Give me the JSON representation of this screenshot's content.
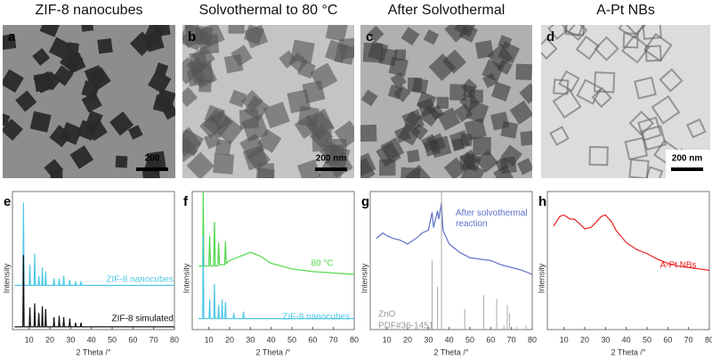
{
  "panels": [
    {
      "letter": "a",
      "title": "ZIF-8 nanocubes",
      "scale_bar": "200"
    },
    {
      "letter": "b",
      "title": "Solvothermal to 80 °C",
      "scale_bar": "200 nm"
    },
    {
      "letter": "c",
      "title": "After Solvothermal",
      "scale_bar": null
    },
    {
      "letter": "d",
      "title": "A-Pt NBs",
      "scale_bar": "200 nm"
    }
  ],
  "chart_data": [
    {
      "type": "line",
      "letter": "e",
      "xlabel": "2 Theta /°",
      "ylabel": "Intensity",
      "xlim": [
        2,
        80
      ],
      "xticks": [
        10,
        20,
        30,
        40,
        50,
        60,
        70,
        80
      ],
      "ylim": [
        0,
        100
      ],
      "series": [
        {
          "name": "ZIF-8 nanocubes",
          "color": "#4fc8e6",
          "x": [
            3,
            7,
            7.3,
            7.6,
            10.1,
            10.4,
            10.7,
            12.4,
            12.7,
            13,
            14.4,
            14.7,
            15,
            16.1,
            16.4,
            16.7,
            17.7,
            18,
            18.3,
            21.7,
            22,
            22.3,
            24.2,
            24.5,
            24.8,
            26.4,
            26.7,
            27,
            29.3,
            29.6,
            29.9,
            32.1,
            32.4,
            32.7,
            34.7,
            35,
            35.3,
            80
          ],
          "values": [
            32,
            32,
            92,
            32,
            32,
            47,
            32,
            32,
            55,
            32,
            32,
            39,
            32,
            32,
            45,
            32,
            32,
            42,
            32,
            32,
            37,
            32,
            32,
            37,
            32,
            32,
            39,
            32,
            32,
            36,
            32,
            32,
            35,
            32,
            32,
            35,
            32,
            32
          ]
        },
        {
          "name": "ZIF-8 simulated",
          "color": "#111111",
          "x": [
            3,
            7,
            7.3,
            7.6,
            10.1,
            10.4,
            10.7,
            12.4,
            12.7,
            13,
            14.4,
            14.7,
            15,
            16.1,
            16.4,
            16.7,
            17.7,
            18,
            18.3,
            21.7,
            22,
            22.3,
            24.2,
            24.5,
            24.8,
            26.4,
            26.7,
            27,
            29.3,
            29.6,
            29.9,
            32.1,
            32.4,
            32.7,
            34.7,
            35,
            35.3,
            80
          ],
          "values": [
            2,
            2,
            54,
            2,
            2,
            16,
            2,
            2,
            19,
            2,
            2,
            12,
            2,
            2,
            17,
            2,
            2,
            15,
            2,
            2,
            9,
            2,
            2,
            10,
            2,
            2,
            9,
            2,
            2,
            8,
            2,
            2,
            5,
            2,
            2,
            5,
            2,
            2
          ]
        }
      ]
    },
    {
      "type": "line",
      "letter": "f",
      "xlabel": "2 Theta /°",
      "ylabel": "Intensity",
      "xlim": [
        2,
        80
      ],
      "xticks": [
        10,
        20,
        30,
        40,
        50,
        60,
        70,
        80
      ],
      "ylim": [
        0,
        100
      ],
      "series": [
        {
          "name": "80 °C",
          "color": "#4ed84a",
          "x": [
            5,
            7,
            7.3,
            7.6,
            10,
            10.4,
            10.8,
            12.3,
            12.7,
            13.1,
            14.3,
            14.7,
            15.1,
            17.6,
            18,
            18.4,
            20,
            25,
            30,
            35,
            40,
            50,
            60,
            70,
            80
          ],
          "values": [
            46,
            46,
            100,
            46,
            46,
            68,
            46,
            46,
            78,
            46,
            46,
            63,
            47,
            47,
            64,
            48,
            50,
            53,
            56,
            53,
            48,
            44,
            42,
            41,
            40
          ]
        },
        {
          "name": "ZIF-8 nanocubes",
          "color": "#4fc8e6",
          "x": [
            5,
            7,
            7.3,
            7.6,
            10.1,
            10.4,
            10.7,
            12.4,
            12.7,
            13,
            14.4,
            14.7,
            15,
            16.1,
            16.4,
            16.7,
            17.7,
            18,
            18.3,
            21.7,
            22,
            22.3,
            26.4,
            26.7,
            27,
            80
          ],
          "values": [
            8,
            8,
            68,
            8,
            8,
            22,
            8,
            8,
            33,
            8,
            8,
            18,
            8,
            8,
            22,
            8,
            8,
            20,
            8,
            8,
            12,
            8,
            8,
            13,
            8,
            8
          ]
        }
      ]
    },
    {
      "type": "line",
      "letter": "g",
      "xlabel": "2 Theta /°",
      "ylabel": "Intensity",
      "xlim": [
        2,
        80
      ],
      "xticks": [
        10,
        20,
        30,
        40,
        50,
        60,
        70,
        80
      ],
      "ylim": [
        0,
        100
      ],
      "series": [
        {
          "name": "After solvothermal reaction",
          "color": "#6070c8",
          "x": [
            5,
            8,
            10,
            13,
            16,
            20,
            24,
            27,
            30,
            31.8,
            32.5,
            34.4,
            35,
            36.3,
            37,
            40,
            45,
            50,
            55,
            60,
            65,
            70,
            75,
            80
          ],
          "values": [
            66,
            70,
            68,
            66,
            65,
            62,
            66,
            70,
            72,
            85,
            74,
            86,
            80,
            92,
            72,
            62,
            56,
            52,
            51,
            50,
            47,
            45,
            43,
            40
          ]
        },
        {
          "name": "ZnO",
          "type": "stick",
          "color": "#aaaaaa",
          "x": [
            31.8,
            34.4,
            36.3,
            47.5,
            56.6,
            62.9,
            66.4,
            68,
            69.1,
            72.6,
            77
          ],
          "values": [
            50,
            31,
            100,
            15,
            25,
            22,
            3,
            18,
            12,
            2,
            3
          ]
        }
      ],
      "annotation": "PDF#36-1451"
    },
    {
      "type": "line",
      "letter": "h",
      "xlabel": "2 Theta /°",
      "ylabel": "Intensity",
      "xlim": [
        2,
        80
      ],
      "xticks": [
        10,
        20,
        30,
        40,
        50,
        60,
        70,
        80
      ],
      "ylim": [
        0,
        100
      ],
      "series": [
        {
          "name": "A-Pt NBs",
          "color": "#e82020",
          "x": [
            5,
            8,
            10,
            13,
            15,
            18,
            20,
            23,
            25,
            28,
            30,
            33,
            35,
            40,
            45,
            50,
            55,
            60,
            65,
            70,
            75,
            80
          ],
          "values": [
            75,
            82,
            83,
            80,
            80,
            76,
            73,
            74,
            77,
            82,
            83,
            78,
            72,
            63,
            58,
            55,
            51,
            48,
            46,
            45,
            44,
            43
          ]
        }
      ]
    }
  ]
}
